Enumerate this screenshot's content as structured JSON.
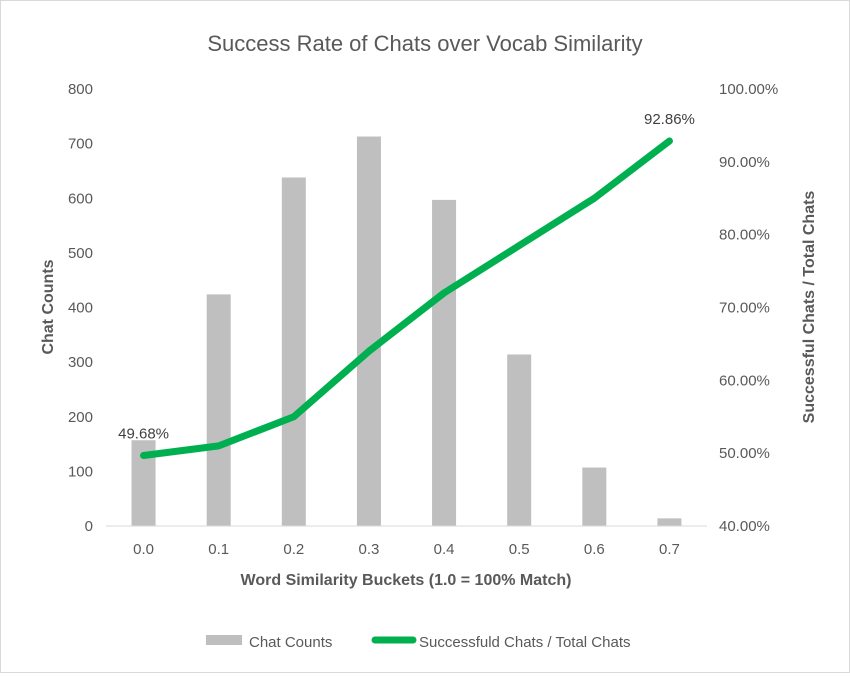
{
  "chart_data": {
    "type": "bar",
    "title": "Success Rate of Chats over Vocab Similarity",
    "xlabel": "Word Similarity Buckets (1.0 = 100% Match)",
    "ylabel": "Chat Counts",
    "y2label": "Successful Chats / Total Chats",
    "categories": [
      "0.0",
      "0.1",
      "0.2",
      "0.3",
      "0.4",
      "0.5",
      "0.6",
      "0.7"
    ],
    "ylim": [
      0,
      800
    ],
    "yticks": [
      "0",
      "100",
      "200",
      "300",
      "400",
      "500",
      "600",
      "700",
      "800"
    ],
    "y2lim": [
      40,
      100
    ],
    "y2ticks": [
      "40.00%",
      "50.00%",
      "60.00%",
      "70.00%",
      "80.00%",
      "90.00%",
      "100.00%"
    ],
    "grid": false,
    "legend_position": "bottom",
    "series": [
      {
        "name": "Chat Counts",
        "type": "bar",
        "axis": "left",
        "color": "#bfbfbf",
        "values": [
          157,
          424,
          638,
          713,
          597,
          314,
          107,
          14
        ]
      },
      {
        "name": "Successfuld Chats / Total Chats",
        "type": "line",
        "axis": "right",
        "color": "#00b050",
        "values": [
          49.68,
          51.0,
          55.0,
          64.0,
          72.0,
          78.5,
          85.0,
          92.86
        ]
      }
    ],
    "data_labels": [
      {
        "index": 0,
        "text": "49.68%"
      },
      {
        "index": 7,
        "text": "92.86%"
      }
    ]
  }
}
